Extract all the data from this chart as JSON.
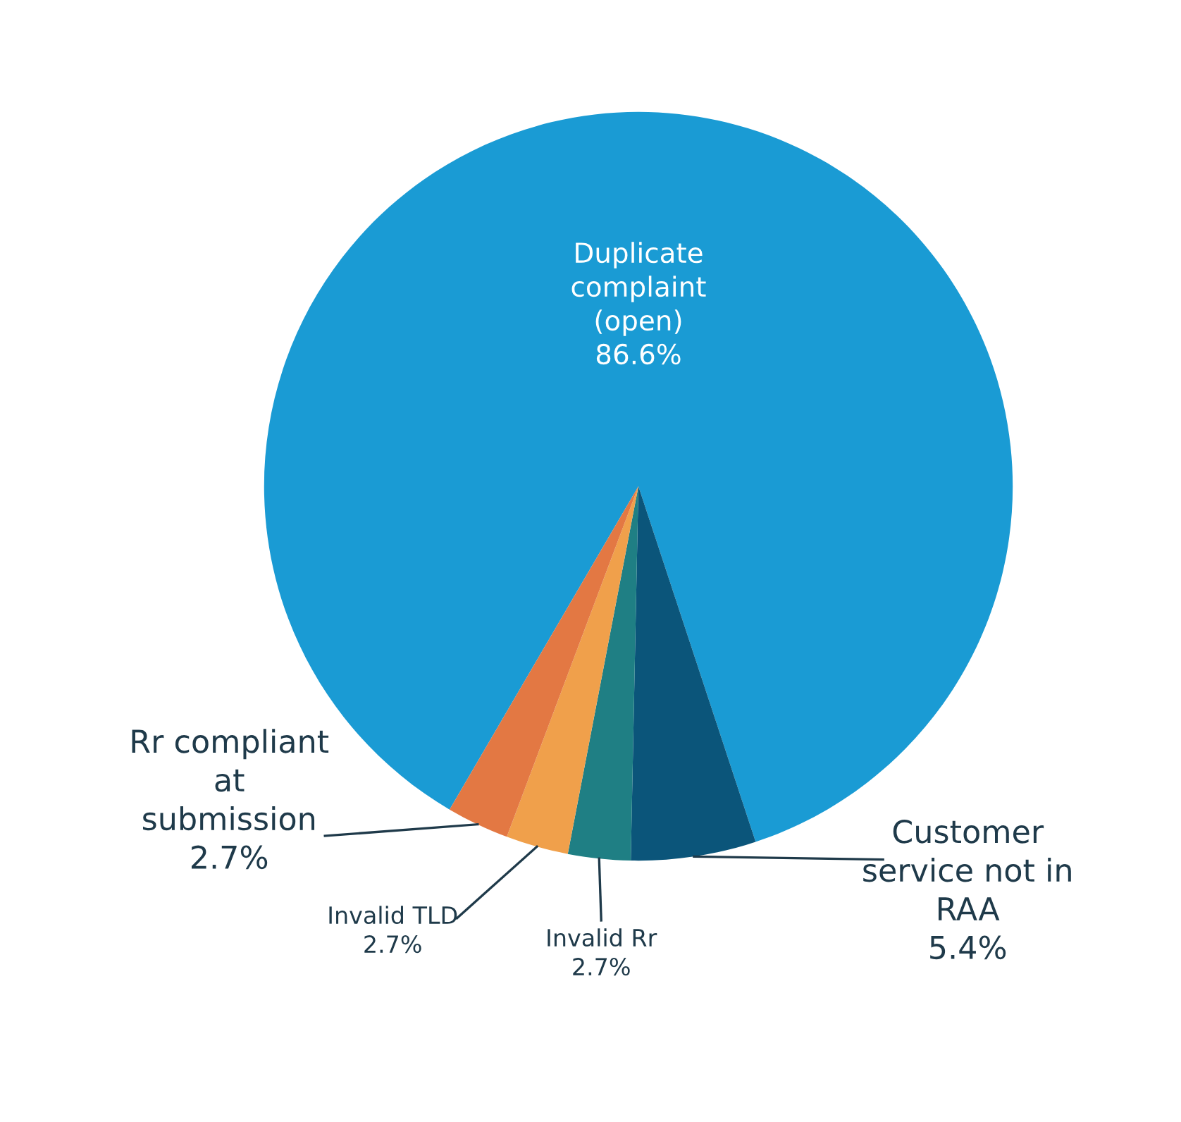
{
  "chart_data": {
    "type": "pie",
    "categories": [
      "Duplicate\ncomplaint\n(open)",
      "Customer\nservice not in\nRAA",
      "Invalid Rr",
      "Invalid TLD",
      "Rr compliant\nat\nsubmission"
    ],
    "values": [
      86.6,
      5.4,
      2.7,
      2.7,
      2.7
    ],
    "value_labels": [
      "86.6%",
      "5.4%",
      "2.7%",
      "2.7%",
      "2.7%"
    ],
    "colors": [
      "#1a9bd4",
      "#0b557a",
      "#1f7f84",
      "#f0a04b",
      "#e37843"
    ],
    "legend": false
  }
}
